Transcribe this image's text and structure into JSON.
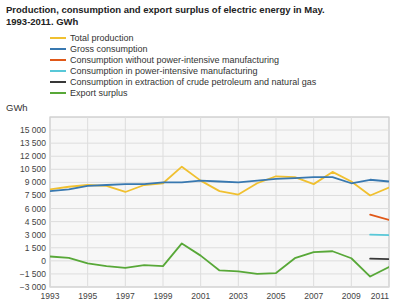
{
  "chart_data": {
    "type": "line",
    "title": "Production, consumption and export surplus of electric energy in May.\n1993-2011. GWh",
    "ylabel": "GWh",
    "x": [
      1993,
      1994,
      1995,
      1996,
      1997,
      1998,
      1999,
      2000,
      2001,
      2002,
      2003,
      2004,
      2005,
      2006,
      2007,
      2008,
      2009,
      2010,
      2011
    ],
    "series": [
      {
        "name": "Total production",
        "color": "#f0c030",
        "values": [
          8200,
          8500,
          8700,
          8600,
          7900,
          8700,
          8900,
          10800,
          9200,
          8000,
          7600,
          8900,
          9700,
          9600,
          8800,
          10200,
          9100,
          7500,
          8400
        ]
      },
      {
        "name": "Gross consumption",
        "color": "#3878b0",
        "values": [
          8000,
          8200,
          8600,
          8700,
          8800,
          8800,
          9000,
          9000,
          9200,
          9100,
          9000,
          9200,
          9400,
          9500,
          9600,
          9600,
          8900,
          9300,
          9100
        ]
      },
      {
        "name": "Consumption without power-intensive manufacturing",
        "color": "#e05818",
        "values": [
          null,
          null,
          null,
          null,
          null,
          null,
          null,
          null,
          null,
          null,
          null,
          null,
          null,
          null,
          null,
          null,
          null,
          5300,
          4700
        ]
      },
      {
        "name": "Consumption in power-intensive manufacturing",
        "color": "#58c8d8",
        "values": [
          null,
          null,
          null,
          null,
          null,
          null,
          null,
          null,
          null,
          null,
          null,
          null,
          null,
          null,
          null,
          null,
          null,
          3000,
          2950
        ]
      },
      {
        "name": "Consumption in extraction of crude petroleum and natural gas",
        "color": "#383838",
        "values": [
          null,
          null,
          null,
          null,
          null,
          null,
          null,
          null,
          null,
          null,
          null,
          null,
          null,
          null,
          null,
          null,
          null,
          250,
          200
        ]
      },
      {
        "name": "Export surplus",
        "color": "#58a838",
        "values": [
          500,
          350,
          -300,
          -600,
          -800,
          -500,
          -600,
          2000,
          600,
          -1100,
          -1200,
          -1500,
          -1400,
          300,
          1000,
          1100,
          300,
          -1800,
          -700
        ]
      }
    ],
    "xlim": [
      1993,
      2011
    ],
    "xticks": [
      1993,
      1995,
      1997,
      1999,
      2001,
      2003,
      2005,
      2007,
      2009,
      2011
    ],
    "ylim": [
      -3000,
      16500
    ],
    "yticks": [
      {
        "value": -3000,
        "label": "−3 000"
      },
      {
        "value": -1500,
        "label": "−1 500"
      },
      0,
      {
        "value": 1500,
        "label": "1 500"
      },
      {
        "value": 3000,
        "label": "3 000"
      },
      {
        "value": 4500,
        "label": "4 500"
      },
      {
        "value": 6000,
        "label": "6 000"
      },
      {
        "value": 7500,
        "label": "7 500"
      },
      {
        "value": 9000,
        "label": "9 000"
      },
      {
        "value": 10500,
        "label": "10 500"
      },
      {
        "value": 12000,
        "label": "12 000"
      },
      {
        "value": 13500,
        "label": "13 500"
      },
      {
        "value": 15000,
        "label": "15 000"
      }
    ],
    "grid": true,
    "legend": "top"
  }
}
